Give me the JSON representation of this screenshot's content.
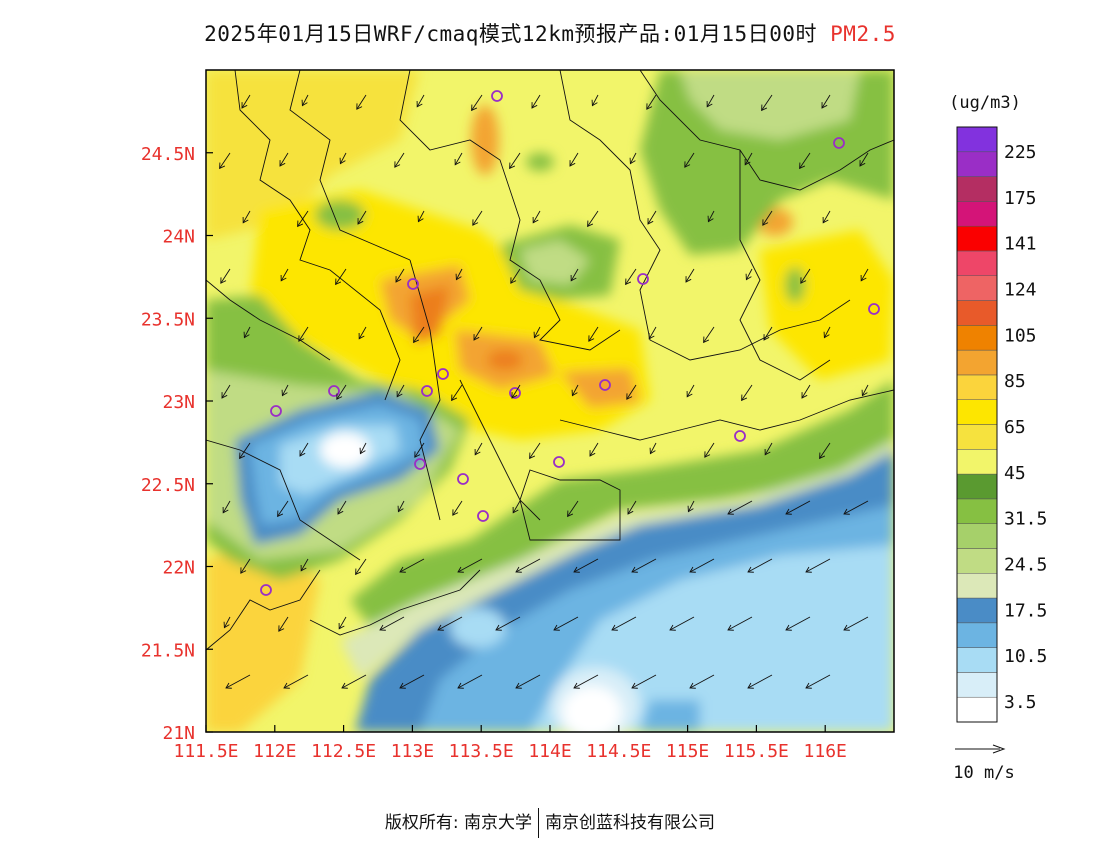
{
  "title": {
    "main": "2025年01月15日WRF/cmaq模式12km预报产品:01月15日00时",
    "variable": "PM2.5"
  },
  "map": {
    "lat_ticks": [
      "21N",
      "21.5N",
      "22N",
      "22.5N",
      "23N",
      "23.5N",
      "24N",
      "24.5N"
    ],
    "lon_ticks": [
      "111.5E",
      "112E",
      "112.5E",
      "113E",
      "113.5E",
      "114E",
      "114.5E",
      "115E",
      "115.5E",
      "116E"
    ],
    "colors": {
      "ocean_light": "#a8dcf4",
      "ocean_mid": "#6cb4e2",
      "ocean_dark": "#4a8cc6",
      "yellow_light": "#f2f56a",
      "yellow": "#fde600",
      "yellow_orange": "#fbd43c",
      "orange": "#f3a430",
      "deep_orange": "#ec7e1e",
      "green_light": "#c0dc84",
      "green": "#86c042",
      "green_dark": "#5a9a30"
    }
  },
  "legend": {
    "unit": "(ug/m3)",
    "labels": [
      "225",
      "175",
      "141",
      "124",
      "105",
      "85",
      "65",
      "45",
      "31.5",
      "24.5",
      "17.5",
      "10.5",
      "3.5"
    ],
    "colors": [
      "#ffffff",
      "#d8eef8",
      "#a8dcf4",
      "#6cb4e2",
      "#4a8cc6",
      "#dce8b8",
      "#c0dc84",
      "#a6d06a",
      "#86c042",
      "#5a9a30",
      "#f2f56a",
      "#f6e23e",
      "#fde600",
      "#fbd43c",
      "#f3a430",
      "#ef8200",
      "#e85a2a",
      "#ee6464",
      "#ee4668",
      "#fa0000",
      "#d41478",
      "#b42e62",
      "#9a2ec6",
      "#8232de"
    ]
  },
  "wind_legend": {
    "label": "10 m/s"
  },
  "footer": {
    "left": "版权所有: 南京大学",
    "right": "南京创蓝科技有限公司"
  }
}
